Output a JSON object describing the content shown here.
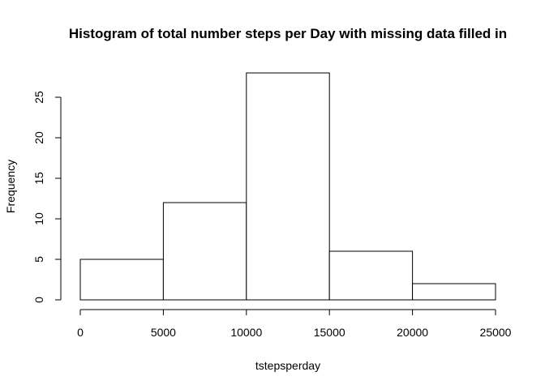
{
  "chart_data": {
    "type": "bar",
    "title": "Histogram of total number steps per Day with missing data filled in",
    "xlabel": "tstepsperday",
    "ylabel": "Frequency",
    "bins": [
      {
        "start": 0,
        "end": 5000,
        "value": 5
      },
      {
        "start": 5000,
        "end": 10000,
        "value": 12
      },
      {
        "start": 10000,
        "end": 15000,
        "value": 28
      },
      {
        "start": 15000,
        "end": 20000,
        "value": 6
      },
      {
        "start": 20000,
        "end": 25000,
        "value": 2
      }
    ],
    "xticks": [
      0,
      5000,
      10000,
      15000,
      20000,
      25000
    ],
    "yticks": [
      0,
      5,
      10,
      15,
      20,
      25
    ],
    "xlim": [
      0,
      25000
    ],
    "ylim": [
      0,
      28
    ],
    "grid": false,
    "legend": "none"
  }
}
